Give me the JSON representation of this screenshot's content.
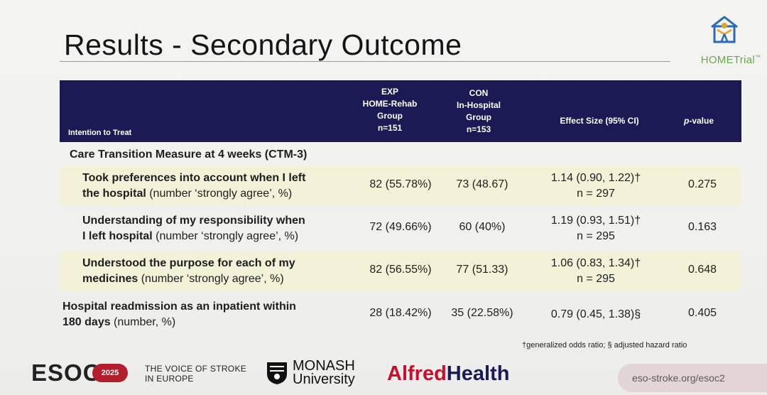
{
  "title": "Results - Secondary Outcome",
  "logo": {
    "text": "HOMETrial",
    "mark": "™"
  },
  "table": {
    "headers": {
      "itt": "Intention to Treat",
      "exp_l1": "EXP",
      "exp_l2": "HOME-Rehab",
      "exp_l3": "Group",
      "exp_l4": "n=151",
      "con_l1": "CON",
      "con_l2": "In-Hospital",
      "con_l3": "Group",
      "con_l4": "n=153",
      "effect": "Effect Size (95% CI)",
      "p_italic": "p",
      "p_rest": "-value"
    },
    "section": "Care Transition Measure at 4 weeks (CTM-3)",
    "rows": [
      {
        "bold1": "Took preferences into account when I left",
        "bold2": "the hospital",
        "rest": "  (number ‘strongly agree’, %)",
        "exp": "82 (55.78%)",
        "con": "73 (48.67)",
        "effect": "1.14 (0.90, 1.22)†",
        "n": "n = 297",
        "p": "0.275"
      },
      {
        "bold1": "Understanding of my responsibility when",
        "bold2": "I left hospital",
        "rest": " (number ‘strongly agree’, %)",
        "exp": "72 (49.66%)",
        "con": "60 (40%)",
        "effect": "1.19 (0.93, 1.51)†",
        "n": "n = 295",
        "p": "0.163"
      },
      {
        "bold1": "Understood the purpose for each of my",
        "bold2": "medicines",
        "rest": " (number ‘strongly agree’, %)",
        "exp": "82 (56.55%)",
        "con": "77 (51.33)",
        "effect": "1.06 (0.83, 1.34)†",
        "n": "n = 295",
        "p": "0.648"
      },
      {
        "bold1": "Hospital readmission as an inpatient within",
        "bold2": "180 days",
        "rest": " (number, %)",
        "exp": "28 (18.42%)",
        "con": "35 (22.58%)",
        "effect": "0.79 (0.45, 1.38)§",
        "n": "",
        "p": "0.405"
      }
    ]
  },
  "footnote": "†generalized odds ratio; § adjusted hazard ratio",
  "footer": {
    "esoc": "ESOC",
    "esoc_year": "2025",
    "voice_l1": "THE VOICE OF STROKE",
    "voice_l2": "IN EUROPE",
    "monash_l1": "MONASH",
    "monash_l2": "University",
    "alfred_a": "Alfred",
    "alfred_b": "Health",
    "url": "eso-stroke.org/esoc2"
  },
  "colors": {
    "header_bg": "#1b1a55",
    "row_shade": "#f3f2d9",
    "brand_red": "#c8102e",
    "logo_green": "#6aa64a",
    "logo_blue": "#2a6bb5"
  }
}
